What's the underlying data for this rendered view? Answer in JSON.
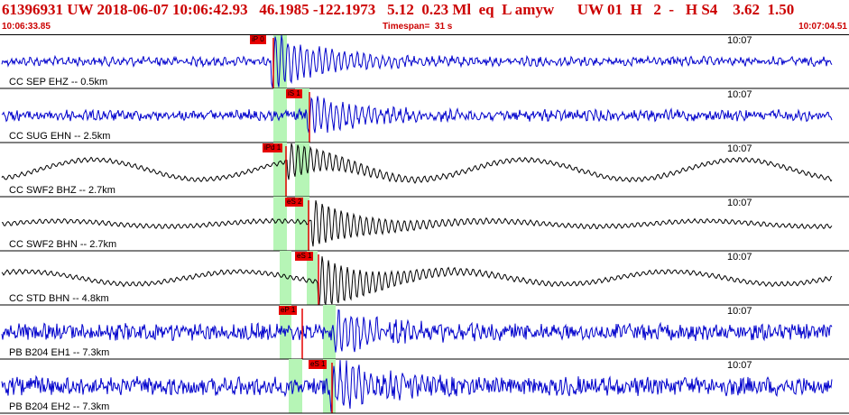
{
  "header": {
    "event_id": "61396931",
    "network": "UW",
    "origin_datetime": "2018-06-07 10:06:42.93",
    "latitude": "46.1985",
    "longitude": "-122.1973",
    "depth": "5.12",
    "magnitude": "0.23",
    "magnitude_type": "Ml",
    "event_type": "eq",
    "status": "L",
    "analyst": "amyw",
    "source": "UW",
    "version": "01",
    "quality_h": "H",
    "num": "2",
    "dash": "-",
    "quality_hs": "H S4",
    "rms": "3.62",
    "erh": "1.50",
    "start_time": "10:06:33.85",
    "timespan_label": "Timespan=",
    "timespan_value": "31 s",
    "end_time": "10:07:04.51"
  },
  "colors": {
    "trace_blue": "#0000cc",
    "trace_black": "#000000",
    "pick_red": "#e60000",
    "window_green": "#b6f5b6",
    "header_red": "#cc0000"
  },
  "tick_label": "10:07",
  "channels": [
    {
      "label": "CC SEP EHZ -- 0.5km",
      "color": "blue",
      "picks": [
        {
          "text": "iP 0"
        }
      ]
    },
    {
      "label": "CC SUG EHN -- 2.5km",
      "color": "blue",
      "picks": [
        {
          "text": "iS 1"
        }
      ]
    },
    {
      "label": "CC SWF2 BHZ -- 2.7km",
      "color": "black",
      "picks": [
        {
          "text": "iPd 1"
        }
      ]
    },
    {
      "label": "CC SWF2 BHN -- 2.7km",
      "color": "black",
      "picks": [
        {
          "text": "eS 2"
        }
      ]
    },
    {
      "label": "CC STD BHN -- 4.8km",
      "color": "black",
      "picks": [
        {
          "text": "eS 1"
        }
      ]
    },
    {
      "label": "PB B204 EH1 -- 7.3km",
      "color": "blue",
      "picks": [
        {
          "text": "eP 1"
        }
      ]
    },
    {
      "label": "PB B204 EH2 -- 7.3km",
      "color": "blue",
      "picks": [
        {
          "text": "eS 1"
        }
      ]
    }
  ]
}
